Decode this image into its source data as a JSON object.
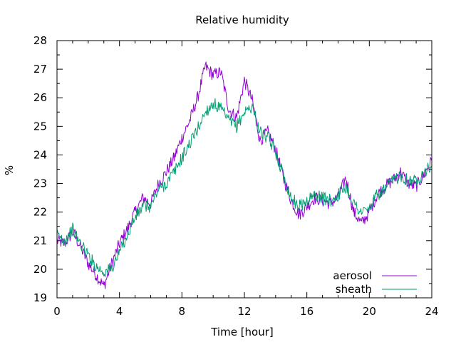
{
  "chart_data": {
    "type": "line",
    "title": "Relative humidity",
    "xlabel": "Time [hour]",
    "ylabel": "%",
    "xlim": [
      0,
      24
    ],
    "ylim": [
      19,
      28
    ],
    "xticks": [
      0,
      4,
      8,
      12,
      16,
      20,
      24
    ],
    "yticks": [
      19,
      20,
      21,
      22,
      23,
      24,
      25,
      26,
      27,
      28
    ],
    "xtick_labels": [
      "0",
      "4",
      "8",
      "12",
      "16",
      "20",
      "24"
    ],
    "ytick_labels": [
      "19",
      "20",
      "21",
      "22",
      "23",
      "24",
      "25",
      "26",
      "27",
      "28"
    ],
    "grid": false,
    "legend_position": "bottom-right",
    "series": [
      {
        "name": "aerosol",
        "color": "#9400d3",
        "x": [
          0,
          0.5,
          1.0,
          1.5,
          2.0,
          2.5,
          3.0,
          3.5,
          4.0,
          4.5,
          5.0,
          5.5,
          6.0,
          6.5,
          7.0,
          7.5,
          8.0,
          8.5,
          9.0,
          9.5,
          10.0,
          10.5,
          11.0,
          11.5,
          12.0,
          12.5,
          13.0,
          13.5,
          14.0,
          14.5,
          15.0,
          15.5,
          16.0,
          16.5,
          17.0,
          17.5,
          18.0,
          18.5,
          19.0,
          19.5,
          20.0,
          20.5,
          21.0,
          21.5,
          22.0,
          22.5,
          23.0,
          23.5,
          24.0
        ],
        "y": [
          21.0,
          20.9,
          21.3,
          20.8,
          20.2,
          19.8,
          19.4,
          20.2,
          20.9,
          21.4,
          22.0,
          22.5,
          22.3,
          23.0,
          23.4,
          23.9,
          24.6,
          25.2,
          26.0,
          27.1,
          26.8,
          26.9,
          25.6,
          25.3,
          26.6,
          25.9,
          24.5,
          24.8,
          24.2,
          23.2,
          22.4,
          21.9,
          22.2,
          22.5,
          22.4,
          22.3,
          22.5,
          23.2,
          22.0,
          21.6,
          22.0,
          22.6,
          22.9,
          23.1,
          23.4,
          23.0,
          22.9,
          23.3,
          23.8
        ]
      },
      {
        "name": "sheath",
        "color": "#009e73",
        "x": [
          0,
          0.5,
          1.0,
          1.5,
          2.0,
          2.5,
          3.0,
          3.5,
          4.0,
          4.5,
          5.0,
          5.5,
          6.0,
          6.5,
          7.0,
          7.5,
          8.0,
          8.5,
          9.0,
          9.5,
          10.0,
          10.5,
          11.0,
          11.5,
          12.0,
          12.5,
          13.0,
          13.5,
          14.0,
          14.5,
          15.0,
          15.5,
          16.0,
          16.5,
          17.0,
          17.5,
          18.0,
          18.5,
          19.0,
          19.5,
          20.0,
          20.5,
          21.0,
          21.5,
          22.0,
          22.5,
          23.0,
          23.5,
          24.0
        ],
        "y": [
          21.2,
          21.0,
          21.4,
          20.9,
          20.5,
          20.1,
          19.9,
          20.0,
          20.6,
          21.2,
          21.8,
          22.2,
          22.2,
          22.8,
          23.0,
          23.4,
          23.9,
          24.4,
          24.9,
          25.5,
          25.8,
          25.6,
          25.2,
          25.0,
          25.5,
          25.7,
          24.8,
          24.6,
          24.1,
          23.3,
          22.5,
          22.2,
          22.4,
          22.6,
          22.5,
          22.4,
          22.6,
          22.9,
          22.3,
          22.0,
          22.1,
          22.6,
          22.8,
          23.1,
          23.3,
          23.1,
          23.1,
          23.4,
          23.6
        ]
      }
    ]
  }
}
